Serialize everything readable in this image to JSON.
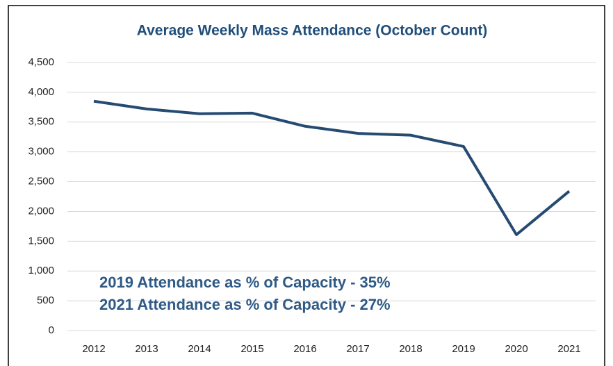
{
  "chart_data": {
    "type": "line",
    "title": "Average Weekly Mass Attendance (October Count)",
    "categories": [
      "2012",
      "2013",
      "2014",
      "2015",
      "2016",
      "2017",
      "2018",
      "2019",
      "2020",
      "2021"
    ],
    "values": [
      3850,
      3720,
      3640,
      3650,
      3430,
      3310,
      3280,
      3090,
      1610,
      2340
    ],
    "color": "#264b73",
    "ylim": [
      0,
      4500
    ],
    "yticks": [
      0,
      500,
      {
        "value": 1000,
        "label": "1,000"
      },
      {
        "value": 1500,
        "label": "1,500"
      },
      {
        "value": 2000,
        "label": "2,000"
      },
      {
        "value": 2500,
        "label": "2,500"
      },
      {
        "value": 3000,
        "label": "3,000"
      },
      {
        "value": 3500,
        "label": "3,500"
      },
      {
        "value": 4000,
        "label": "4,000"
      },
      {
        "value": 4500,
        "label": "4,500"
      }
    ],
    "grid": true,
    "annotations": [
      "2019 Attendance as % of Capacity - 35%",
      "2021 Attendance as % of Capacity - 27%"
    ]
  }
}
